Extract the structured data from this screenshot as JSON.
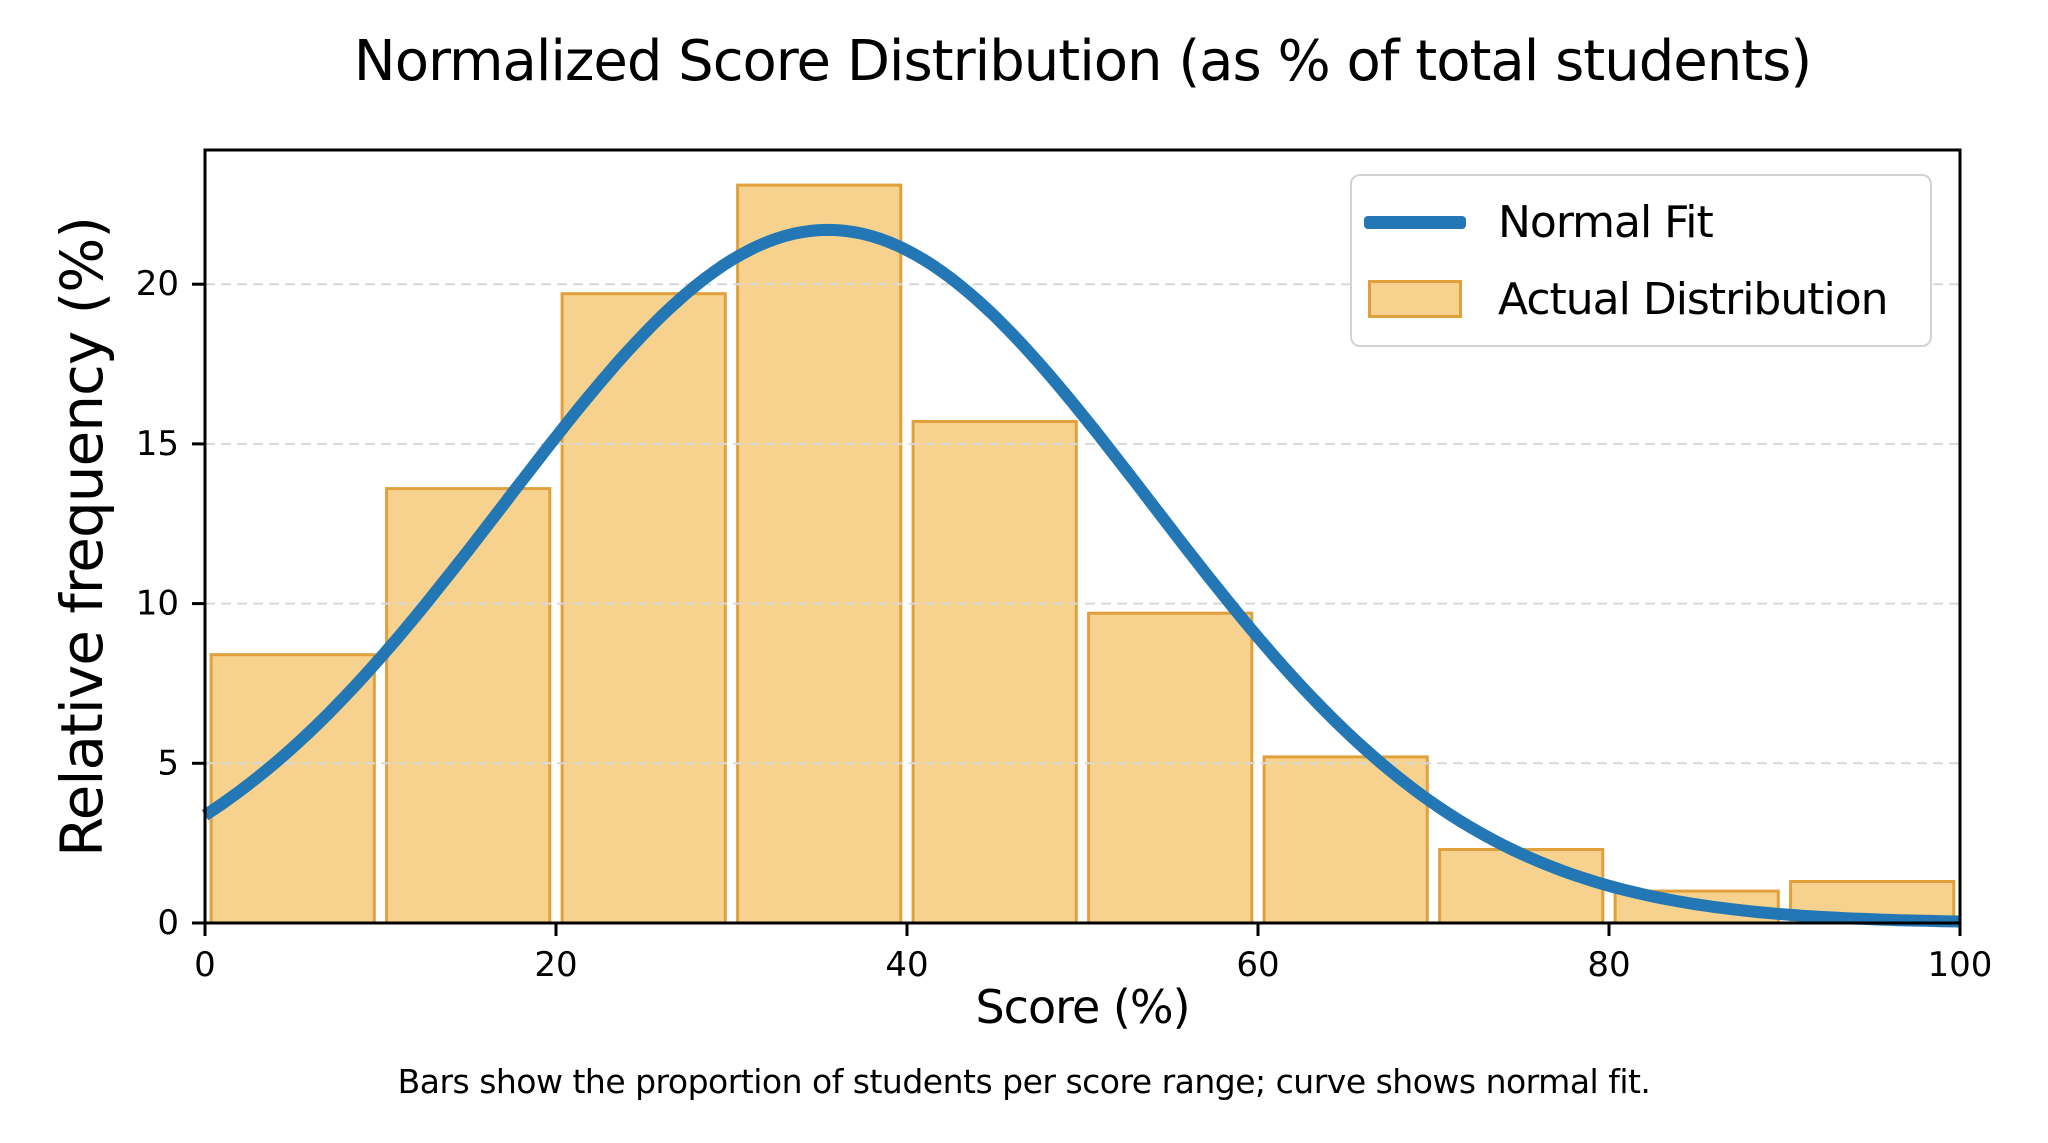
{
  "chart_data": {
    "type": "bar",
    "title": "Normalized Score Distribution (as % of total students)",
    "xlabel": "Score (%)",
    "ylabel": "Relative frequency (%)",
    "caption": "Bars show the proportion of students per score range; curve shows normal fit.",
    "bin_edges": [
      0,
      10,
      20,
      30,
      40,
      50,
      60,
      70,
      80,
      90,
      100
    ],
    "categories": [
      "0-10",
      "10-20",
      "20-30",
      "30-40",
      "40-50",
      "50-60",
      "60-70",
      "70-80",
      "80-90",
      "90-100"
    ],
    "series": [
      {
        "name": "Actual Distribution",
        "type": "bar",
        "values": [
          8.4,
          13.6,
          19.7,
          23.1,
          15.7,
          9.7,
          5.2,
          2.3,
          1.0,
          1.3
        ]
      },
      {
        "name": "Normal Fit",
        "type": "line",
        "normal_fit": {
          "mean": 35.5,
          "sigma": 18.4,
          "peak": 21.7,
          "value_at_x0": 3.4
        }
      }
    ],
    "xlim": [
      0,
      100
    ],
    "ylim": [
      0,
      24.2
    ],
    "x_ticks": [
      0,
      20,
      40,
      60,
      80,
      100
    ],
    "y_ticks": [
      0,
      5,
      10,
      15,
      20
    ],
    "grid": {
      "axis": "y",
      "style": "dashed",
      "drawn_above_bars": true
    },
    "legend": {
      "position": "upper right",
      "items": [
        {
          "label": "Normal Fit",
          "swatch": "line"
        },
        {
          "label": "Actual Distribution",
          "swatch": "patch"
        }
      ]
    },
    "colors": {
      "bar_fill": "#F6D28E",
      "bar_edge": "#E1A03C",
      "line": "#2277B4",
      "grid": "#D8D8D8",
      "spine": "#000000",
      "text": "#000000",
      "legend_border": "#D2D2D2",
      "background": "#FFFFFF"
    }
  }
}
